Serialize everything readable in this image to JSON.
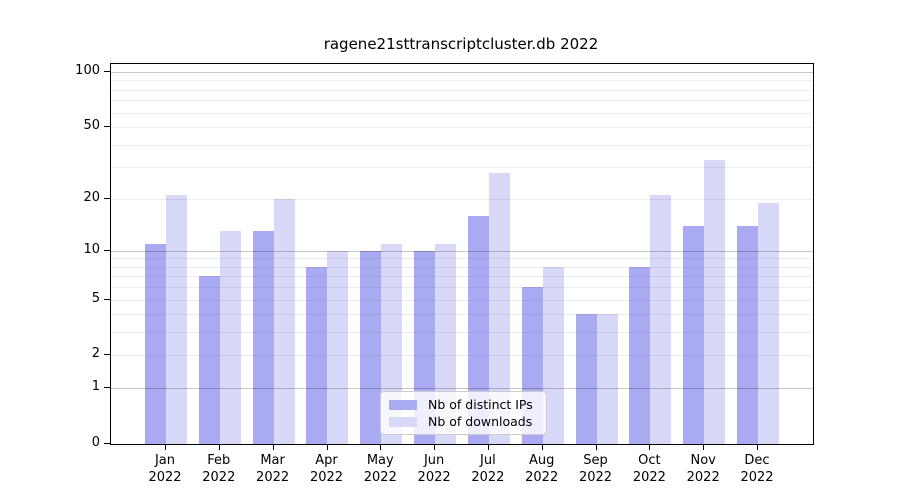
{
  "chart_data": {
    "type": "bar",
    "title": "ragene21sttranscriptcluster.db 2022",
    "categories": [
      "Jan 2022",
      "Feb 2022",
      "Mar 2022",
      "Apr 2022",
      "May 2022",
      "Jun 2022",
      "Jul 2022",
      "Aug 2022",
      "Sep 2022",
      "Oct 2022",
      "Nov 2022",
      "Dec 2022"
    ],
    "series": [
      {
        "key": "ips",
        "name": "Nb of distinct IPs",
        "color": "#aaaaf2",
        "values": [
          11,
          7,
          13,
          8,
          10,
          10,
          16,
          6,
          4,
          8,
          14,
          14
        ]
      },
      {
        "key": "downloads",
        "name": "Nb of downloads",
        "color": "#d8d8f8",
        "values": [
          21,
          13,
          20,
          10,
          11,
          11,
          28,
          8,
          4,
          21,
          33,
          19
        ]
      }
    ],
    "xlabel": "",
    "ylabel": "",
    "yscale": "log1p",
    "yticks": [
      0,
      1,
      2,
      5,
      10,
      20,
      50,
      100
    ],
    "ylim": [
      0,
      110
    ],
    "grid": true,
    "legend_position": "lower center"
  }
}
